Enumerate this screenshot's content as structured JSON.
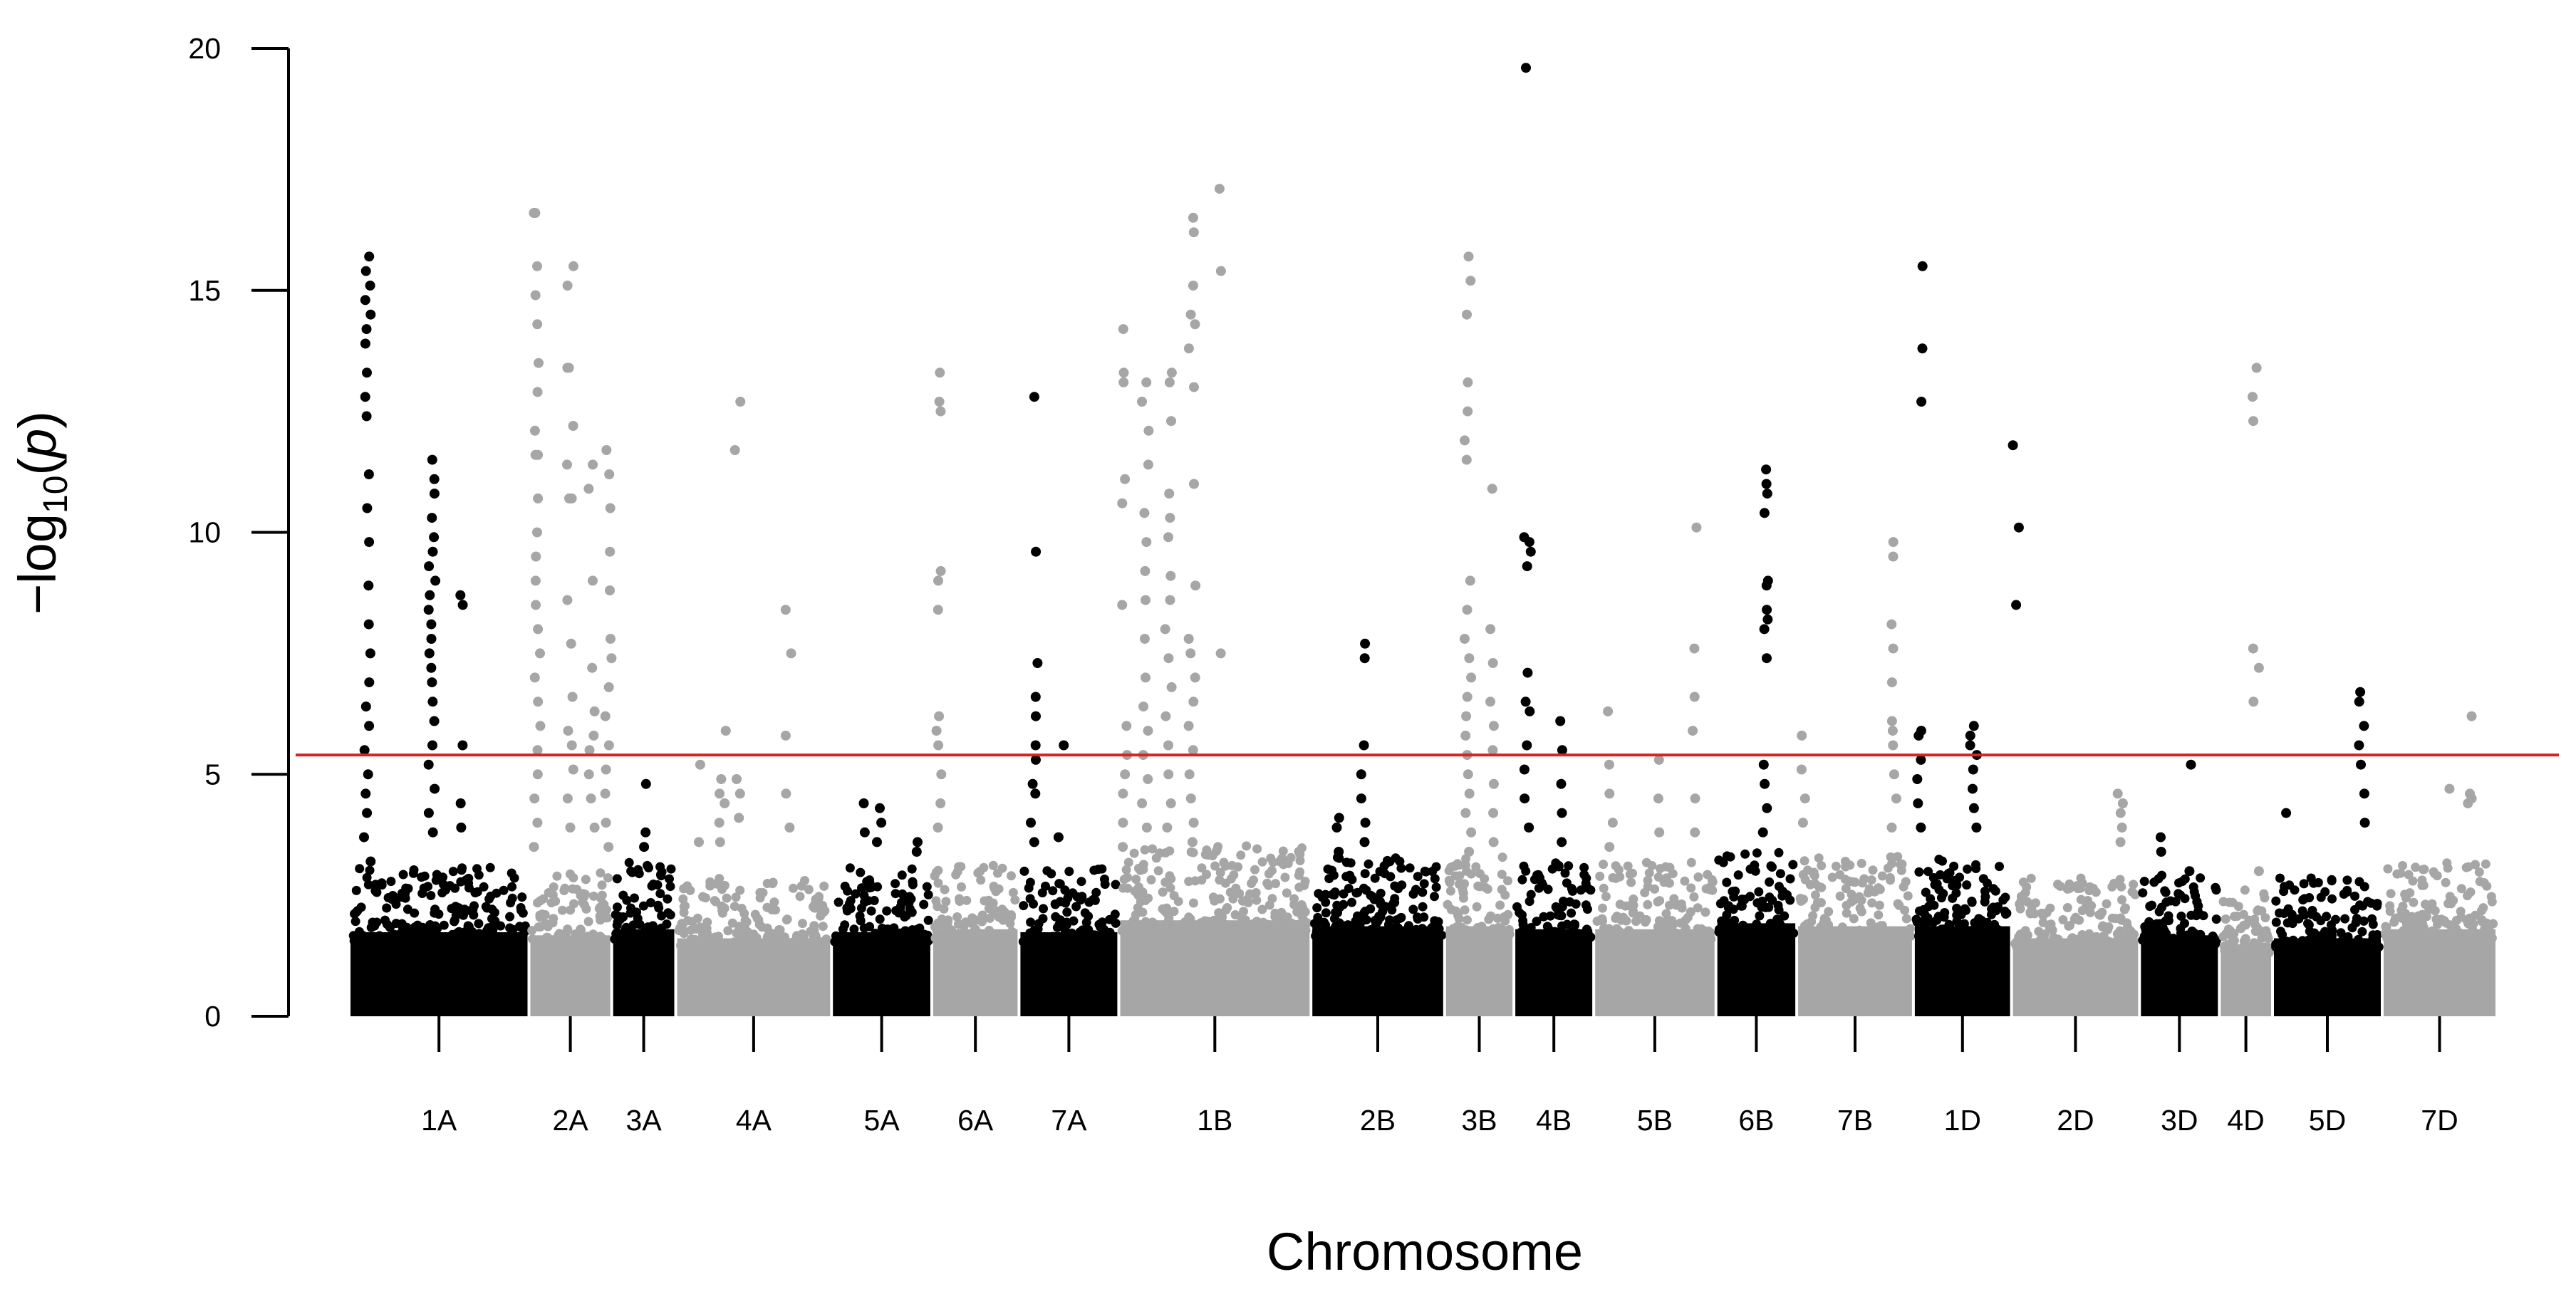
{
  "colors": {
    "odd_chromosome": "#000000",
    "even_chromosome": "#a6a6a6",
    "threshold": "#e02020",
    "axis": "#000000"
  },
  "chart_data": {
    "type": "scatter",
    "title": "",
    "xlabel": "Chromosome",
    "ylabel_main": "−log",
    "ylabel_sub": "10",
    "ylabel_var": "p",
    "ylim": [
      0,
      20
    ],
    "yticks": [
      0,
      5,
      10,
      15,
      20
    ],
    "threshold": 5.4,
    "chromosomes": [
      {
        "name": "1A",
        "start": 0.0,
        "end": 108.2,
        "max_base": 2.8,
        "peaks": [
          {
            "pos": 11,
            "values": [
              15.7,
              15.4,
              15.1,
              14.8,
              14.5,
              14.2,
              13.9,
              13.3,
              12.8,
              12.4,
              11.2,
              10.5,
              9.8,
              8.9,
              8.1,
              7.5,
              6.9,
              6.4,
              6.0,
              5.5,
              5.0,
              4.6,
              4.2,
              3.7,
              3.2
            ]
          },
          {
            "pos": 50,
            "values": [
              11.5,
              11.1,
              10.8,
              10.3,
              9.9,
              9.6,
              9.3,
              9.0,
              8.7,
              8.4,
              8.1,
              7.8,
              7.5,
              7.2,
              6.9,
              6.5,
              6.1,
              5.6,
              5.2,
              4.7,
              4.2,
              3.8
            ]
          },
          {
            "pos": 69,
            "values": [
              8.7,
              8.5,
              5.6,
              4.4,
              3.9
            ]
          }
        ]
      },
      {
        "name": "2A",
        "start": 108.2,
        "end": 158.0,
        "max_base": 2.7,
        "peaks": [
          {
            "pos": 5,
            "values": [
              16.6,
              16.6,
              15.5,
              14.9,
              14.3,
              13.5,
              12.9,
              12.1,
              11.6,
              11.6,
              10.7,
              10.0,
              9.5,
              9.0,
              8.5,
              8.0,
              7.5,
              7.0,
              6.5,
              6.0,
              5.5,
              5.0,
              4.5,
              4.0,
              3.5
            ]
          },
          {
            "pos": 25,
            "values": [
              15.5,
              15.1,
              13.4,
              13.4,
              12.2,
              11.4,
              10.7,
              10.7,
              8.6,
              7.7,
              6.6,
              5.9,
              5.6,
              5.1,
              4.5,
              3.9
            ]
          },
          {
            "pos": 38,
            "values": [
              11.4,
              10.9,
              9.0,
              7.2,
              6.3,
              5.8,
              5.5,
              5.0,
              4.5,
              3.9
            ]
          },
          {
            "pos": 48,
            "values": [
              11.7,
              11.2,
              10.5,
              9.6,
              8.8,
              7.8,
              7.4,
              6.8,
              6.2,
              5.6,
              5.1,
              4.6,
              4.0,
              3.5
            ]
          }
        ]
      },
      {
        "name": "3A",
        "start": 158.0,
        "end": 196.5,
        "max_base": 2.9,
        "peaks": [
          {
            "pos": 20,
            "values": [
              4.8,
              3.8,
              3.5
            ]
          }
        ]
      },
      {
        "name": "4A",
        "start": 196.5,
        "end": 290.2,
        "max_base": 2.6,
        "peaks": [
          {
            "pos": 14,
            "values": [
              5.2,
              3.6
            ]
          },
          {
            "pos": 28,
            "values": [
              5.9,
              4.9,
              4.6,
              4.4,
              4.0,
              3.6
            ]
          },
          {
            "pos": 37,
            "values": [
              12.7,
              11.7,
              4.9,
              4.6,
              4.1
            ]
          },
          {
            "pos": 68,
            "values": [
              8.4,
              7.5,
              5.8,
              4.6,
              3.9
            ]
          }
        ]
      },
      {
        "name": "5A",
        "start": 290.2,
        "end": 350.5,
        "max_base": 2.8,
        "peaks": [
          {
            "pos": 18,
            "values": [
              4.4,
              3.8
            ]
          },
          {
            "pos": 28,
            "values": [
              4.3,
              4.0,
              3.6
            ]
          },
          {
            "pos": 52,
            "values": [
              3.6,
              3.4
            ]
          }
        ]
      },
      {
        "name": "6A",
        "start": 350.5,
        "end": 403.0,
        "max_base": 2.9,
        "peaks": [
          {
            "pos": 4,
            "values": [
              13.3,
              12.7,
              12.5,
              9.2,
              9.0,
              8.4,
              6.2,
              5.9,
              5.6,
              5.0,
              4.4,
              3.9
            ]
          }
        ]
      },
      {
        "name": "7A",
        "start": 403.0,
        "end": 463.0,
        "max_base": 2.8,
        "peaks": [
          {
            "pos": 9,
            "values": [
              12.8,
              9.6,
              7.3,
              6.6,
              6.2,
              5.6,
              5.3,
              4.8,
              4.6,
              4.0,
              3.6
            ]
          },
          {
            "pos": 25,
            "values": [
              5.6,
              3.7
            ]
          }
        ]
      },
      {
        "name": "1B",
        "start": 463.0,
        "end": 578.6,
        "max_base": 3.2,
        "peaks": [
          {
            "pos": 3,
            "values": [
              14.2,
              13.3,
              13.1,
              11.1,
              10.6,
              8.5,
              6.0,
              5.4,
              5.0,
              4.6,
              4.0,
              3.5
            ]
          },
          {
            "pos": 16,
            "values": [
              13.1,
              12.7,
              12.1,
              11.4,
              10.4,
              9.8,
              9.2,
              8.6,
              7.8,
              7.0,
              6.4,
              5.9,
              5.4,
              4.9,
              4.4,
              3.9
            ]
          },
          {
            "pos": 30,
            "values": [
              13.3,
              13.1,
              12.3,
              10.8,
              10.3,
              9.9,
              9.1,
              8.6,
              8.0,
              7.4,
              6.8,
              6.2,
              5.6,
              5.0,
              4.4,
              3.9
            ]
          },
          {
            "pos": 44,
            "values": [
              16.5,
              16.2,
              15.1,
              14.5,
              14.3,
              13.8,
              13.0,
              11.0,
              8.9,
              7.8,
              7.5,
              7.0,
              6.5,
              6.0,
              5.5,
              5.0,
              4.5,
              4.0,
              3.6
            ]
          },
          {
            "pos": 62,
            "values": [
              17.1,
              15.4,
              7.5
            ]
          }
        ]
      },
      {
        "name": "2B",
        "start": 578.6,
        "end": 659.0,
        "max_base": 3.0,
        "peaks": [
          {
            "pos": 32,
            "values": [
              7.7,
              7.4,
              5.6,
              5.0,
              4.5,
              4.0,
              3.6
            ]
          },
          {
            "pos": 16,
            "values": [
              4.1,
              3.9,
              3.4
            ]
          }
        ]
      },
      {
        "name": "3B",
        "start": 659.0,
        "end": 700.7,
        "max_base": 3.0,
        "peaks": [
          {
            "pos": 14,
            "values": [
              15.7,
              15.2,
              14.5,
              13.1,
              12.5,
              11.9,
              11.5,
              9.0,
              8.4,
              7.8,
              7.4,
              7.0,
              6.6,
              6.2,
              5.8,
              5.4,
              5.0,
              4.6,
              4.2,
              3.8,
              3.4
            ]
          },
          {
            "pos": 28,
            "values": [
              10.9,
              8.0,
              7.3,
              6.5,
              6.0,
              5.5,
              4.8,
              4.2,
              3.6
            ]
          }
        ]
      },
      {
        "name": "4B",
        "start": 700.7,
        "end": 748.7,
        "max_base": 2.9,
        "peaks": [
          {
            "pos": 8,
            "values": [
              19.6,
              9.9,
              9.8,
              9.6,
              9.3,
              7.1,
              6.5,
              6.3,
              5.6,
              5.1,
              4.5,
              3.9
            ]
          },
          {
            "pos": 30,
            "values": [
              6.1,
              5.5,
              4.8,
              4.2,
              3.6
            ]
          }
        ]
      },
      {
        "name": "5B",
        "start": 748.7,
        "end": 822.2,
        "max_base": 2.9,
        "peaks": [
          {
            "pos": 10,
            "values": [
              6.3,
              5.2,
              4.6,
              4.0,
              3.5
            ]
          },
          {
            "pos": 40,
            "values": [
              5.3,
              4.5,
              3.8
            ]
          },
          {
            "pos": 60,
            "values": [
              7.6,
              10.1,
              6.6,
              5.9,
              4.5,
              3.8
            ]
          }
        ]
      },
      {
        "name": "6B",
        "start": 822.2,
        "end": 870.8,
        "max_base": 3.1,
        "peaks": [
          {
            "pos": 30,
            "values": [
              11.3,
              11.0,
              10.8,
              10.4,
              9.0,
              8.9,
              8.4,
              8.2,
              8.0,
              7.4,
              5.2,
              4.8,
              4.3,
              3.8
            ]
          }
        ]
      },
      {
        "name": "7B",
        "start": 870.8,
        "end": 941.0,
        "max_base": 3.0,
        "peaks": [
          {
            "pos": 5,
            "values": [
              5.8,
              5.1,
              4.5,
              4.0
            ]
          },
          {
            "pos": 58,
            "values": [
              9.8,
              9.5,
              8.1,
              7.6,
              6.9,
              6.1,
              5.9,
              5.6,
              5.0,
              4.5,
              3.9
            ]
          }
        ]
      },
      {
        "name": "1D",
        "start": 941.0,
        "end": 1000.0,
        "max_base": 3.0,
        "peaks": [
          {
            "pos": 4,
            "values": [
              15.5,
              13.8,
              12.7,
              5.9,
              5.8,
              5.3,
              4.9,
              4.4,
              3.9
            ]
          },
          {
            "pos": 36,
            "values": [
              6.0,
              5.8,
              5.6,
              5.4,
              5.1,
              4.7,
              4.3,
              3.9
            ]
          },
          {
            "pos": 62,
            "values": [
              11.8,
              10.1,
              8.5
            ]
          }
        ]
      },
      {
        "name": "2D",
        "start": 1000.0,
        "end": 1077.0,
        "max_base": 2.6,
        "peaks": [
          {
            "pos": 66,
            "values": [
              4.6,
              4.4,
              4.2,
              3.9,
              3.6
            ]
          }
        ]
      },
      {
        "name": "3D",
        "start": 1077.0,
        "end": 1125.0,
        "max_base": 2.7,
        "peaks": [
          {
            "pos": 14,
            "values": [
              3.7,
              3.4
            ]
          },
          {
            "pos": 32,
            "values": [
              5.2,
              3.0
            ]
          }
        ]
      },
      {
        "name": "4D",
        "start": 1125.0,
        "end": 1157.0,
        "max_base": 2.4,
        "peaks": [
          {
            "pos": 22,
            "values": [
              13.4,
              12.8,
              12.3,
              7.6,
              7.2,
              6.5,
              3.0
            ]
          }
        ]
      },
      {
        "name": "5D",
        "start": 1157.0,
        "end": 1223.0,
        "max_base": 2.6,
        "peaks": [
          {
            "pos": 8,
            "values": [
              4.2
            ]
          },
          {
            "pos": 54,
            "values": [
              6.7,
              6.5,
              6.0,
              5.6,
              5.2,
              4.6,
              4.0
            ]
          }
        ]
      },
      {
        "name": "7D",
        "start": 1223.0,
        "end": 1292.0,
        "max_base": 2.9,
        "peaks": [
          {
            "pos": 52,
            "values": [
              6.2,
              4.6,
              4.5,
              4.4
            ]
          },
          {
            "pos": 40,
            "values": [
              4.7
            ]
          }
        ]
      }
    ]
  }
}
